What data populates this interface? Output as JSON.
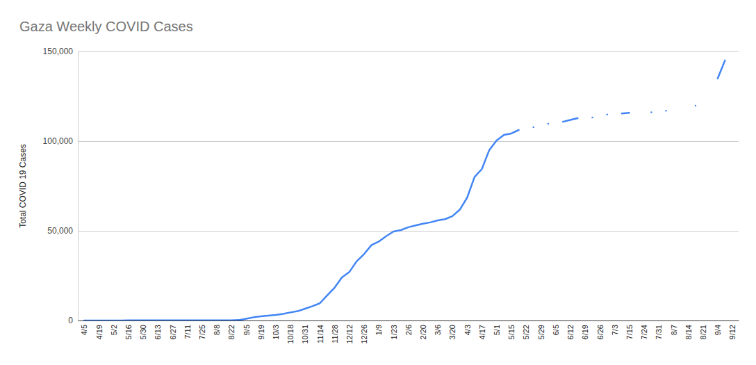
{
  "chart_data": {
    "type": "line",
    "title": "Gaza Weekly COVID Cases",
    "ylabel": "Total COVID 19 Cases",
    "categories": [
      "4/5",
      null,
      "4/19",
      null,
      "5/2",
      null,
      "5/16",
      null,
      "5/30",
      null,
      "6/13",
      null,
      "6/27",
      null,
      "7/11",
      null,
      "7/25",
      null,
      "8/8",
      null,
      "8/22",
      null,
      "9/5",
      null,
      "9/19",
      null,
      "10/3",
      null,
      "10/18",
      null,
      "10/31",
      null,
      "11/14",
      null,
      "11/28",
      null,
      "12/12",
      null,
      "12/26",
      null,
      "1/9",
      null,
      "1/23",
      null,
      "2/6",
      null,
      "2/20",
      null,
      "3/6",
      null,
      "3/20",
      null,
      "4/3",
      null,
      "4/17",
      null,
      "5/1",
      null,
      "5/15",
      null,
      "5/22",
      null,
      "5/29",
      null,
      "6/5",
      null,
      "6/12",
      null,
      "6/19",
      null,
      "6/26",
      null,
      "7/3",
      null,
      "7/15",
      null,
      "7/24",
      null,
      "7/31",
      null,
      "8/7",
      null,
      "8/14",
      null,
      "8/21",
      null,
      "9/4",
      null,
      "9/12"
    ],
    "values": [
      13,
      15,
      17,
      22,
      30,
      40,
      60,
      65,
      70,
      72,
      72,
      72,
      72,
      72,
      73,
      75,
      78,
      80,
      85,
      90,
      100,
      250,
      1000,
      1800,
      2300,
      2700,
      3100,
      3700,
      4500,
      5200,
      6600,
      8000,
      9600,
      14000,
      18300,
      24000,
      27000,
      33000,
      37000,
      42000,
      44000,
      47000,
      49600,
      50400,
      52000,
      53000,
      54000,
      54700,
      55800,
      56500,
      58200,
      61800,
      68500,
      80000,
      84500,
      95000,
      100400,
      103500,
      104300,
      106200,
      null,
      107800,
      null,
      109700,
      null,
      110800,
      111800,
      112800,
      null,
      113200,
      null,
      114800,
      null,
      115400,
      115800,
      null,
      null,
      116100,
      null,
      117000,
      null,
      null,
      null,
      119800,
      null,
      null,
      134900,
      145000,
      null
    ],
    "color": "#4285f4",
    "ylim": [
      0,
      150000
    ],
    "yticks": [
      0,
      {
        "value": 50000,
        "label": "50,000"
      },
      {
        "value": 100000,
        "label": "100,000"
      },
      {
        "value": 150000,
        "label": "150,000"
      }
    ],
    "grid": true
  }
}
